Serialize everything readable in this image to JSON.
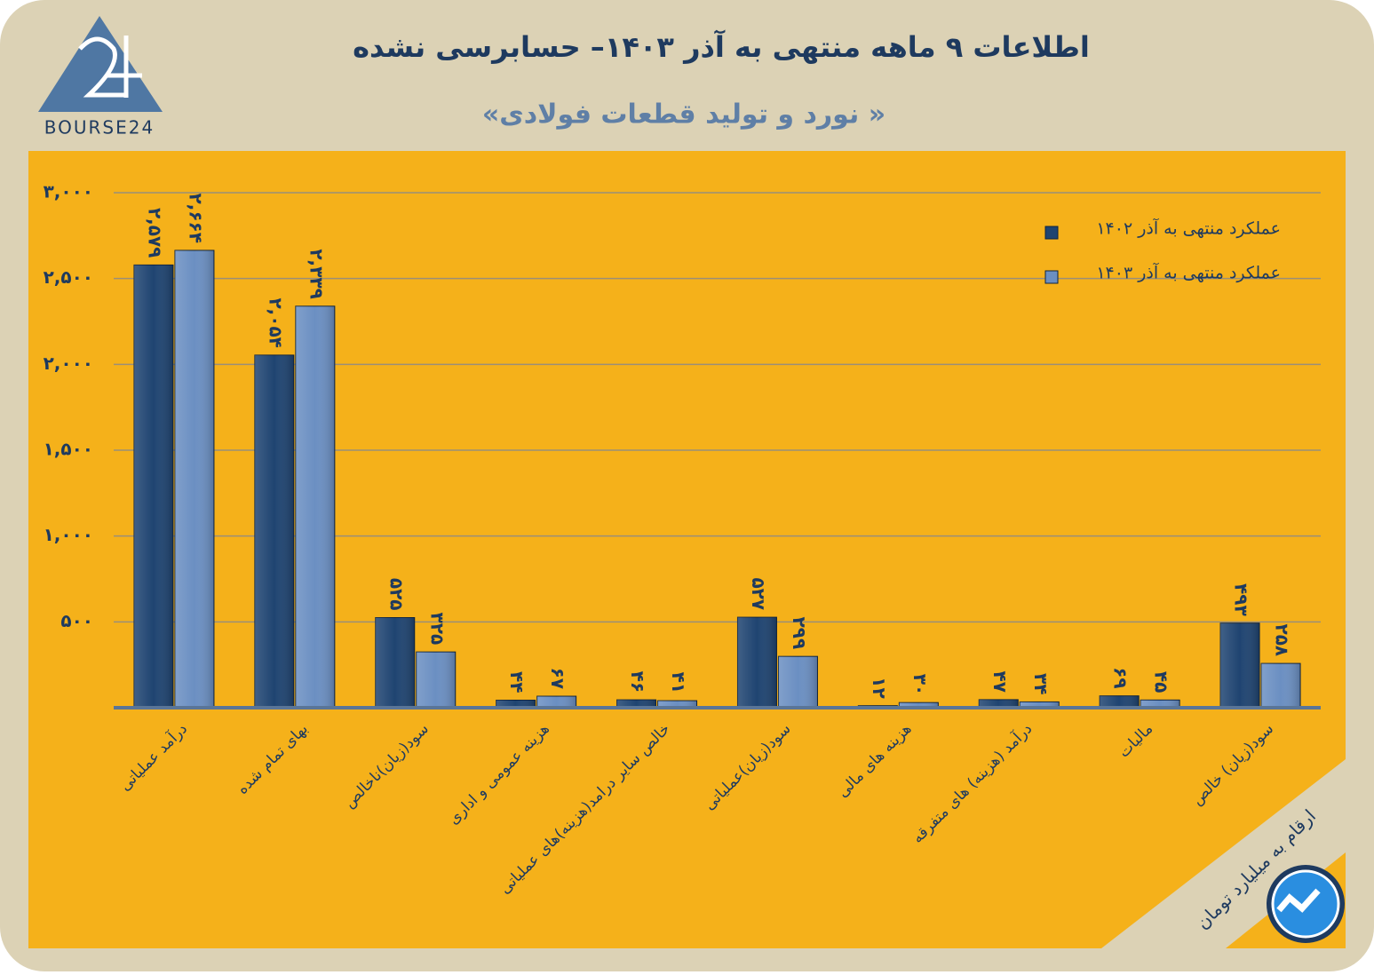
{
  "logo": "BOURSE24",
  "chart_data": {
    "type": "bar",
    "title": "اطلاعات ۹ ماهه منتهی به آذر ۱۴۰۳– حسابرسی نشده",
    "subtitle": "«نورد و تولید قطعات فولادی »",
    "note": "ارقام به میلیارد تومان",
    "categories": [
      "درآمد عملیاتی",
      "بهای تمام شده",
      "سود(زیان)ناخالص",
      "هزینه عمومی و اداری",
      "خالص سایر درامد(هزینه)های عملیاتی",
      "سود(زیان)عملیاتی",
      "هزینه های مالی",
      "درآمد (هزینه) های متفرقه",
      "مالیات",
      "سود(زیان) خالص"
    ],
    "series": [
      {
        "name": "عملکرد منتهی به آذر ۱۴۰۲",
        "color": "#1f4471",
        "values": [
          2579,
          2054,
          525,
          44,
          46,
          527,
          12,
          47,
          69,
          493
        ],
        "value_labels": [
          "۲,۵۷۹",
          "۲,۰۵۴",
          "۵۲۵",
          "۴۴",
          "۴۶",
          "۵۲۷",
          "۱۲",
          "۴۷",
          "۶۹",
          "۴۹۳"
        ]
      },
      {
        "name": "عملکرد منتهی به آذر ۱۴۰۳",
        "color": "#6b8fc2",
        "values": [
          2664,
          2339,
          325,
          67,
          41,
          299,
          30,
          34,
          45,
          258
        ],
        "value_labels": [
          "۲,۶۶۴",
          "۲,۳۳۹",
          "۳۲۵",
          "۶۷",
          "۴۱",
          "۲۹۹",
          "۳۰",
          "۳۴",
          "۴۵",
          "۲۵۸"
        ]
      }
    ],
    "ylim": [
      0,
      3000
    ],
    "yticks": [
      {
        "value": 500,
        "label": "۵۰۰"
      },
      {
        "value": 1000,
        "label": "۱,۰۰۰"
      },
      {
        "value": 1500,
        "label": "۱,۵۰۰"
      },
      {
        "value": 2000,
        "label": "۲,۰۰۰"
      },
      {
        "value": 2500,
        "label": "۲,۵۰۰"
      },
      {
        "value": 3000,
        "label": "۳,۰۰۰"
      }
    ],
    "grid": true,
    "legend": "top-right"
  }
}
